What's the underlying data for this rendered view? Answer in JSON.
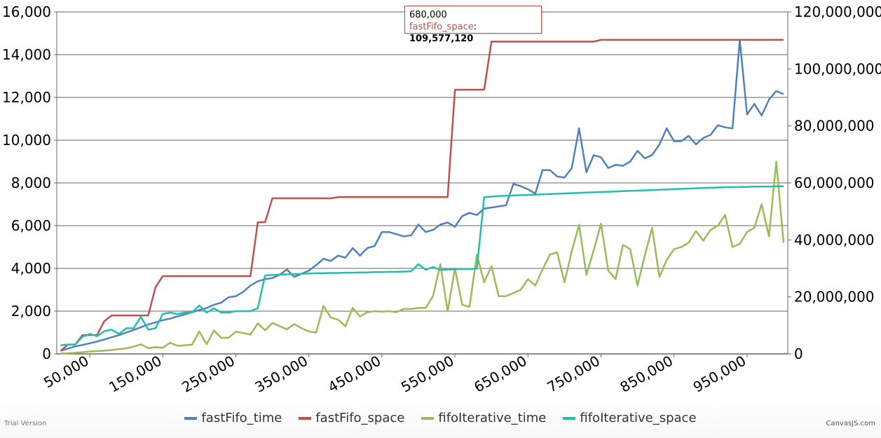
{
  "chart_data": {
    "type": "line",
    "title": "",
    "xlabel": "",
    "ylabel": "",
    "y2label": "",
    "xlim": [
      0,
      1000000
    ],
    "ylim": [
      0,
      16000
    ],
    "y2lim": [
      0,
      120000000
    ],
    "x_ticks": [
      "50,000",
      "150,000",
      "250,000",
      "350,000",
      "450,000",
      "550,000",
      "650,000",
      "750,000",
      "850,000",
      "950,000"
    ],
    "y_ticks": [
      "0",
      "2,000",
      "4,000",
      "6,000",
      "8,000",
      "10,000",
      "12,000",
      "14,000",
      "16,000"
    ],
    "y2_ticks": [
      "0",
      "20,000,000",
      "40,000,000",
      "60,000,000",
      "80,000,000",
      "100,000,000",
      "120,000,000"
    ],
    "grid": true,
    "legend_position": "bottom",
    "x": [
      10000,
      20000,
      30000,
      40000,
      50000,
      60000,
      70000,
      80000,
      90000,
      100000,
      110000,
      120000,
      130000,
      140000,
      150000,
      160000,
      170000,
      180000,
      190000,
      200000,
      210000,
      220000,
      230000,
      240000,
      250000,
      260000,
      270000,
      280000,
      290000,
      300000,
      310000,
      320000,
      330000,
      340000,
      350000,
      360000,
      370000,
      380000,
      390000,
      400000,
      410000,
      420000,
      430000,
      440000,
      450000,
      460000,
      470000,
      480000,
      490000,
      500000,
      510000,
      520000,
      530000,
      540000,
      550000,
      560000,
      570000,
      580000,
      590000,
      600000,
      610000,
      620000,
      630000,
      640000,
      650000,
      660000,
      670000,
      680000,
      690000,
      700000,
      710000,
      720000,
      730000,
      740000,
      750000,
      760000,
      770000,
      780000,
      790000,
      800000,
      810000,
      820000,
      830000,
      840000,
      850000,
      860000,
      870000,
      880000,
      890000,
      900000,
      910000,
      920000,
      930000,
      940000,
      950000,
      960000,
      970000,
      980000,
      990000,
      1000000
    ],
    "series": [
      {
        "name": "fastFifo_time",
        "axis": "left",
        "color": "#4f81bc",
        "values": [
          150,
          250,
          350,
          420,
          500,
          580,
          680,
          780,
          880,
          1000,
          1120,
          1250,
          1380,
          1480,
          1580,
          1650,
          1750,
          1850,
          1950,
          2050,
          2150,
          2300,
          2400,
          2650,
          2700,
          2900,
          3200,
          3400,
          3500,
          3550,
          3700,
          3950,
          3600,
          3750,
          3900,
          4150,
          4450,
          4350,
          4600,
          4500,
          4950,
          4600,
          4950,
          5050,
          5700,
          5700,
          5600,
          5500,
          5550,
          6050,
          5700,
          5800,
          6050,
          6150,
          5950,
          6450,
          6600,
          6500,
          6800,
          6850,
          6900,
          6950,
          7950,
          7850,
          7700,
          7500,
          8600,
          8600,
          8300,
          8250,
          8700,
          10550,
          8500,
          9300,
          9200,
          8700,
          8850,
          8800,
          9000,
          9500,
          9150,
          9300,
          9800,
          10550,
          9950,
          9950,
          10200,
          9800,
          10100,
          10250,
          10700,
          10600,
          10550,
          14700,
          11200,
          11700,
          11150,
          11900,
          12300,
          12150
        ]
      },
      {
        "name": "fastFifo_space",
        "axis": "right",
        "color": "#c0504e",
        "values": [
          1000000,
          3300000,
          3300000,
          6600000,
          6600000,
          6600000,
          11500000,
          13500000,
          13500000,
          13500000,
          13500000,
          13500000,
          13500000,
          23400000,
          27300000,
          27300000,
          27300000,
          27300000,
          27300000,
          27300000,
          27300000,
          27300000,
          27300000,
          27300000,
          27300000,
          27300000,
          27300000,
          46200000,
          46200000,
          54600000,
          54600000,
          54600000,
          54600000,
          54600000,
          54600000,
          54600000,
          54600000,
          54600000,
          55000000,
          55000000,
          55000000,
          55000000,
          55000000,
          55000000,
          55000000,
          55000000,
          55000000,
          55000000,
          55000000,
          55000000,
          55000000,
          55000000,
          55000000,
          55000000,
          92700000,
          92700000,
          92700000,
          92700000,
          92700000,
          109577120,
          109577120,
          109577120,
          109577120,
          109577120,
          109577120,
          109577120,
          109577120,
          109577120,
          109577120,
          109577120,
          109577120,
          109577120,
          109577120,
          109577120,
          110200000,
          110200000,
          110200000,
          110200000,
          110200000,
          110200000,
          110200000,
          110200000,
          110200000,
          110200000,
          110200000,
          110200000,
          110200000,
          110200000,
          110200000,
          110200000,
          110200000,
          110200000,
          110200000,
          110200000,
          110200000,
          110200000,
          110200000,
          110200000,
          110200000,
          110200000
        ]
      },
      {
        "name": "fifoIterative_time",
        "axis": "left",
        "color": "#9bbb59",
        "values": [
          20,
          30,
          50,
          80,
          110,
          130,
          150,
          180,
          220,
          260,
          340,
          450,
          270,
          310,
          290,
          520,
          380,
          400,
          430,
          1050,
          450,
          1100,
          750,
          760,
          1040,
          980,
          900,
          1430,
          1100,
          1450,
          1300,
          1150,
          1400,
          1200,
          1050,
          1000,
          2250,
          1700,
          1600,
          1300,
          2150,
          1750,
          1950,
          2000,
          1980,
          2000,
          1950,
          2100,
          2100,
          2150,
          2150,
          2700,
          4200,
          2000,
          4000,
          2300,
          2200,
          4650,
          3350,
          4100,
          2700,
          2700,
          2850,
          3000,
          3500,
          3200,
          3950,
          4650,
          4750,
          3350,
          4800,
          6050,
          3700,
          4850,
          6100,
          3900,
          3500,
          5100,
          4900,
          3200,
          4600,
          5900,
          3600,
          4400,
          4900,
          5000,
          5200,
          5750,
          5300,
          5800,
          6000,
          6500,
          5000,
          5150,
          5700,
          5900,
          7000,
          5500,
          9000,
          5200
        ]
      },
      {
        "name": "fifoIterative_space",
        "axis": "right",
        "color": "#23bfaa",
        "values": [
          3000000,
          3300000,
          3300000,
          6000000,
          7000000,
          6200000,
          8000000,
          8500000,
          7000000,
          9000000,
          9000000,
          13000000,
          8500000,
          9000000,
          14000000,
          14500000,
          14000000,
          14500000,
          14500000,
          17000000,
          14500000,
          16000000,
          14500000,
          14500000,
          15000000,
          15000000,
          15000000,
          16000000,
          27500000,
          27700000,
          27800000,
          27900000,
          28000000,
          28100000,
          28200000,
          28300000,
          28300000,
          28400000,
          28400000,
          28500000,
          28500000,
          28600000,
          28600000,
          28700000,
          28700000,
          28800000,
          28800000,
          28900000,
          29000000,
          31500000,
          29500000,
          30500000,
          29500000,
          29600000,
          29700000,
          29800000,
          29800000,
          29900000,
          55000000,
          55200000,
          55400000,
          55500000,
          55600000,
          55700000,
          55800000,
          55900000,
          56000000,
          56100000,
          56200000,
          56300000,
          56400000,
          56500000,
          56600000,
          56700000,
          56800000,
          56900000,
          57000000,
          57100000,
          57200000,
          57300000,
          57400000,
          57500000,
          57600000,
          57700000,
          57800000,
          57900000,
          58000000,
          58100000,
          58200000,
          58300000,
          58400000,
          58500000,
          58500000,
          58600000,
          58600000,
          58700000,
          58700000,
          58700000,
          58800000,
          58800000
        ]
      }
    ]
  },
  "tooltip": {
    "x_label": "680,000",
    "series_name": "fastFifo_space",
    "separator": ": ",
    "value": "109,577,120"
  },
  "legend": {
    "items": [
      {
        "label": "fastFifo_time",
        "color": "#4f81bc"
      },
      {
        "label": "fastFifo_space",
        "color": "#c0504e"
      },
      {
        "label": "fifoIterative_time",
        "color": "#9bbb59"
      },
      {
        "label": "fifoIterative_space",
        "color": "#23bfaa"
      }
    ]
  },
  "footer": {
    "trial_text": "Trial Version",
    "brand_text": "CanvasJS.com"
  }
}
